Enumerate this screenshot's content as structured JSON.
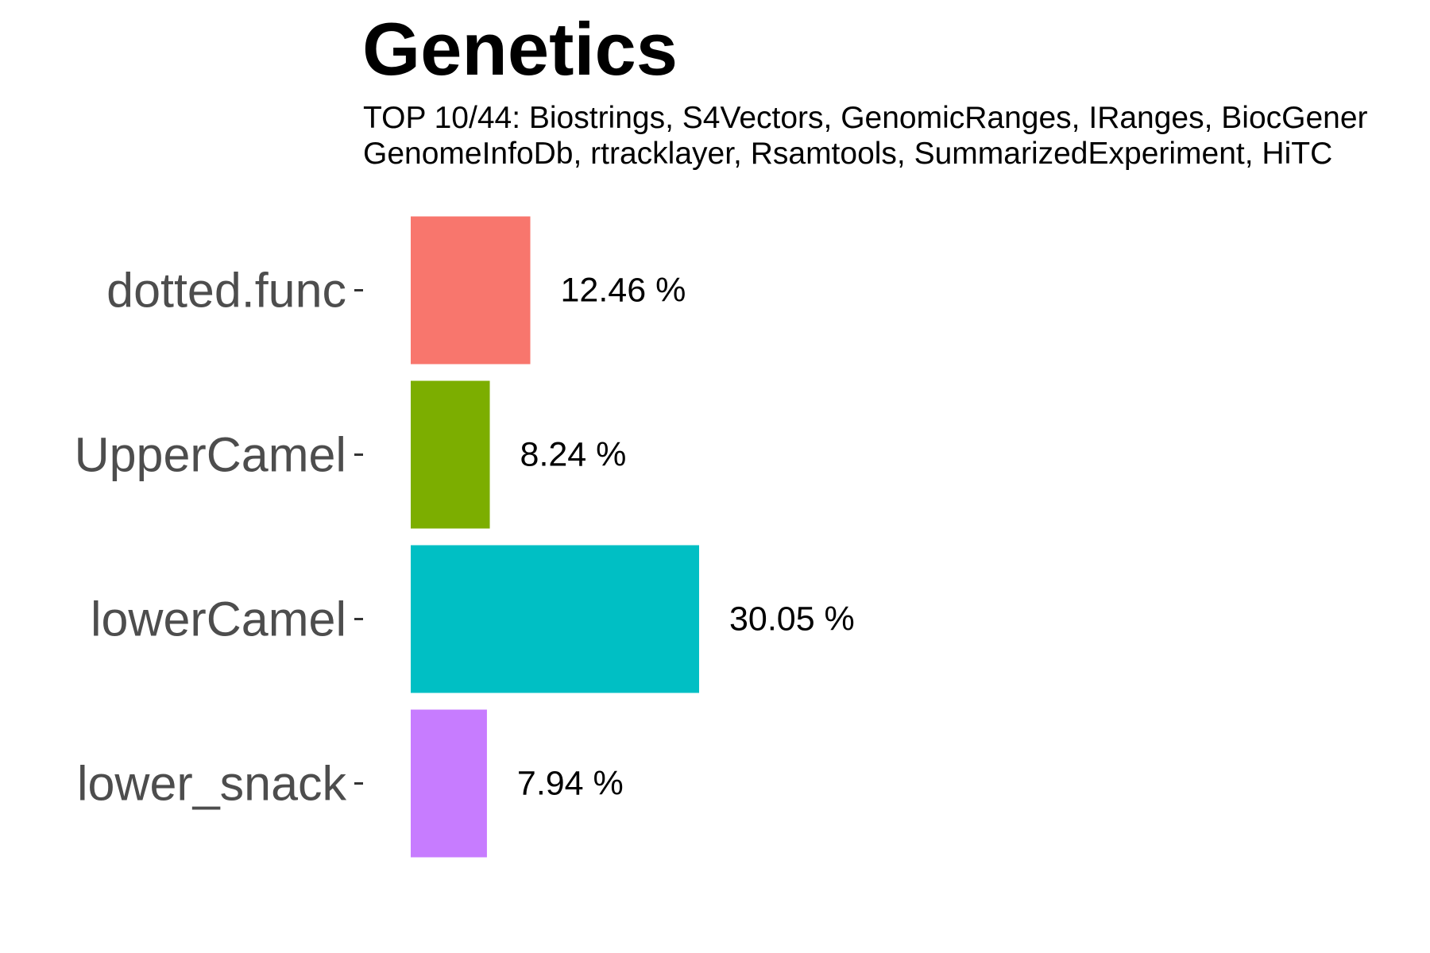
{
  "chart_data": {
    "type": "bar",
    "orientation": "horizontal",
    "title": "Genetics",
    "subtitle": [
      "TOP 10/44: Biostrings, S4Vectors, GenomicRanges, IRanges, BiocGener",
      "GenomeInfoDb, rtracklayer, Rsamtools, SummarizedExperiment, HiTC"
    ],
    "categories": [
      "lower_snack",
      "lowerCamel",
      "UpperCamel",
      "dotted.func"
    ],
    "values": [
      7.94,
      30.05,
      8.24,
      12.46
    ],
    "value_labels": [
      "7.94 %",
      "30.05 %",
      "8.24 %",
      "12.46 %"
    ],
    "colors": [
      "#C77CFF",
      "#00BFC4",
      "#7CAE00",
      "#F8766D"
    ],
    "xlim": [
      0,
      100
    ],
    "xlabel": "",
    "ylabel": "",
    "grid": false,
    "legend": "none"
  }
}
